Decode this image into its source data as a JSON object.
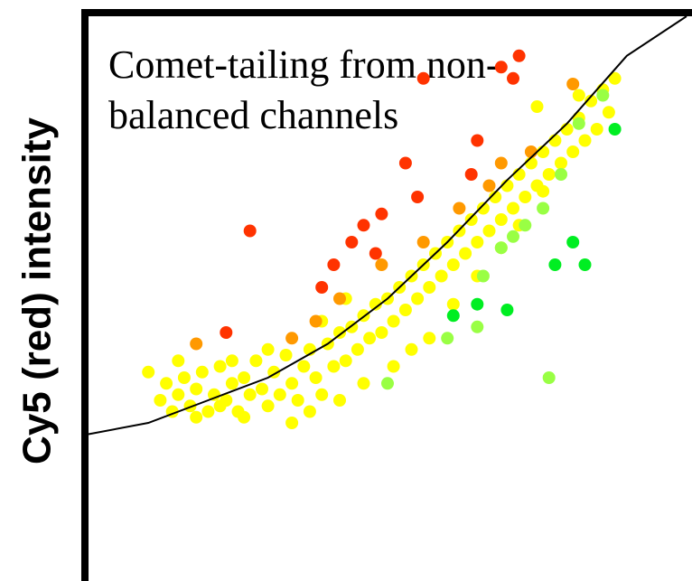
{
  "chart_data": {
    "type": "scatter",
    "title_lines": [
      "Comet-tailing from non-",
      "balanced channels"
    ],
    "xlabel": "",
    "ylabel": "Cy5 (red) intensity",
    "xlim": [
      0,
      10
    ],
    "ylim": [
      0,
      10
    ],
    "grid": false,
    "colors": {
      "yellow": "#ffff00",
      "orange": "#ff9900",
      "red": "#ff3300",
      "light_green": "#99ff44",
      "green": "#00ee22",
      "axis": "#000000",
      "curve": "#000000"
    },
    "fit_curve": {
      "x": [
        0.0,
        1.0,
        2.0,
        3.0,
        4.0,
        5.0,
        6.0,
        7.0,
        8.0,
        9.0,
        10.0
      ],
      "y": [
        2.6,
        2.8,
        3.2,
        3.6,
        4.2,
        5.0,
        6.0,
        7.1,
        8.1,
        9.3,
        10.0
      ]
    },
    "series": [
      {
        "color_key": "yellow",
        "points": [
          [
            1.0,
            3.7
          ],
          [
            1.2,
            3.2
          ],
          [
            1.3,
            3.5
          ],
          [
            1.4,
            3.0
          ],
          [
            1.5,
            3.3
          ],
          [
            1.6,
            3.6
          ],
          [
            1.7,
            3.1
          ],
          [
            1.8,
            3.4
          ],
          [
            1.9,
            3.7
          ],
          [
            2.0,
            3.0
          ],
          [
            2.1,
            3.3
          ],
          [
            2.2,
            3.8
          ],
          [
            2.3,
            3.2
          ],
          [
            2.4,
            3.5
          ],
          [
            2.5,
            3.0
          ],
          [
            2.6,
            3.6
          ],
          [
            2.7,
            3.3
          ],
          [
            2.8,
            3.9
          ],
          [
            2.9,
            3.4
          ],
          [
            3.0,
            3.1
          ],
          [
            3.1,
            3.7
          ],
          [
            3.2,
            3.3
          ],
          [
            3.3,
            4.0
          ],
          [
            3.4,
            3.5
          ],
          [
            3.5,
            3.2
          ],
          [
            3.6,
            3.8
          ],
          [
            3.7,
            4.1
          ],
          [
            3.8,
            3.6
          ],
          [
            3.9,
            3.3
          ],
          [
            4.0,
            4.2
          ],
          [
            4.1,
            3.8
          ],
          [
            4.2,
            4.4
          ],
          [
            4.3,
            3.9
          ],
          [
            4.4,
            4.5
          ],
          [
            4.5,
            4.1
          ],
          [
            4.6,
            4.7
          ],
          [
            4.7,
            4.3
          ],
          [
            4.8,
            4.9
          ],
          [
            4.9,
            4.4
          ],
          [
            5.0,
            5.0
          ],
          [
            5.1,
            4.6
          ],
          [
            5.2,
            5.2
          ],
          [
            5.3,
            4.8
          ],
          [
            5.4,
            5.4
          ],
          [
            5.5,
            5.0
          ],
          [
            5.6,
            5.6
          ],
          [
            5.7,
            5.2
          ],
          [
            5.8,
            5.8
          ],
          [
            5.9,
            5.4
          ],
          [
            6.0,
            6.0
          ],
          [
            6.1,
            5.6
          ],
          [
            6.2,
            6.2
          ],
          [
            6.3,
            5.8
          ],
          [
            6.4,
            6.4
          ],
          [
            6.5,
            6.0
          ],
          [
            6.6,
            6.6
          ],
          [
            6.7,
            6.2
          ],
          [
            6.8,
            6.8
          ],
          [
            6.9,
            6.4
          ],
          [
            7.0,
            7.0
          ],
          [
            7.1,
            6.6
          ],
          [
            7.2,
            7.2
          ],
          [
            7.3,
            6.8
          ],
          [
            7.4,
            7.4
          ],
          [
            7.5,
            7.0
          ],
          [
            7.6,
            7.6
          ],
          [
            7.7,
            7.2
          ],
          [
            7.8,
            7.8
          ],
          [
            7.9,
            7.4
          ],
          [
            8.0,
            8.0
          ],
          [
            8.1,
            7.6
          ],
          [
            8.2,
            8.2
          ],
          [
            8.3,
            7.8
          ],
          [
            8.4,
            8.5
          ],
          [
            8.5,
            8.0
          ],
          [
            8.6,
            8.7
          ],
          [
            8.7,
            8.3
          ],
          [
            8.8,
            8.9
          ],
          [
            8.2,
            8.6
          ],
          [
            7.5,
            8.4
          ],
          [
            1.5,
            3.9
          ],
          [
            2.2,
            3.1
          ],
          [
            2.6,
            2.9
          ],
          [
            3.4,
            2.8
          ],
          [
            3.7,
            3.0
          ],
          [
            4.2,
            3.2
          ],
          [
            4.6,
            3.5
          ],
          [
            5.1,
            3.8
          ],
          [
            5.4,
            4.1
          ],
          [
            5.7,
            4.3
          ],
          [
            6.1,
            4.9
          ],
          [
            6.5,
            5.4
          ],
          [
            6.9,
            5.9
          ],
          [
            7.2,
            6.3
          ],
          [
            7.6,
            6.9
          ],
          [
            1.8,
            2.9
          ],
          [
            2.4,
            3.9
          ],
          [
            3.0,
            4.1
          ],
          [
            3.9,
            4.6
          ],
          [
            4.3,
            5.0
          ]
        ]
      },
      {
        "color_key": "orange",
        "points": [
          [
            1.8,
            4.2
          ],
          [
            3.4,
            4.3
          ],
          [
            3.8,
            4.6
          ],
          [
            4.2,
            5.0
          ],
          [
            4.9,
            5.6
          ],
          [
            5.6,
            6.0
          ],
          [
            6.2,
            6.6
          ],
          [
            6.7,
            7.0
          ],
          [
            6.9,
            7.4
          ],
          [
            7.4,
            7.6
          ],
          [
            8.1,
            8.8
          ]
        ]
      },
      {
        "color_key": "red",
        "points": [
          [
            2.7,
            6.2
          ],
          [
            2.3,
            4.4
          ],
          [
            3.9,
            5.2
          ],
          [
            4.1,
            5.6
          ],
          [
            4.4,
            6.0
          ],
          [
            4.6,
            6.3
          ],
          [
            4.8,
            5.8
          ],
          [
            4.9,
            6.5
          ],
          [
            5.3,
            7.4
          ],
          [
            5.5,
            6.8
          ],
          [
            5.6,
            8.9
          ],
          [
            6.4,
            7.2
          ],
          [
            6.5,
            7.8
          ],
          [
            6.9,
            9.1
          ],
          [
            7.1,
            8.9
          ],
          [
            7.2,
            9.3
          ]
        ]
      },
      {
        "color_key": "light_green",
        "points": [
          [
            5.0,
            3.5
          ],
          [
            6.0,
            4.3
          ],
          [
            6.5,
            4.5
          ],
          [
            6.6,
            5.4
          ],
          [
            6.9,
            5.9
          ],
          [
            7.1,
            6.1
          ],
          [
            7.3,
            6.3
          ],
          [
            7.6,
            6.6
          ],
          [
            7.9,
            7.2
          ],
          [
            7.7,
            3.6
          ],
          [
            8.2,
            8.1
          ],
          [
            8.6,
            8.6
          ]
        ]
      },
      {
        "color_key": "green",
        "points": [
          [
            6.1,
            4.7
          ],
          [
            6.5,
            4.9
          ],
          [
            7.0,
            4.8
          ],
          [
            7.8,
            5.6
          ],
          [
            8.1,
            6.0
          ],
          [
            8.3,
            5.6
          ],
          [
            8.8,
            8.0
          ]
        ]
      }
    ]
  }
}
